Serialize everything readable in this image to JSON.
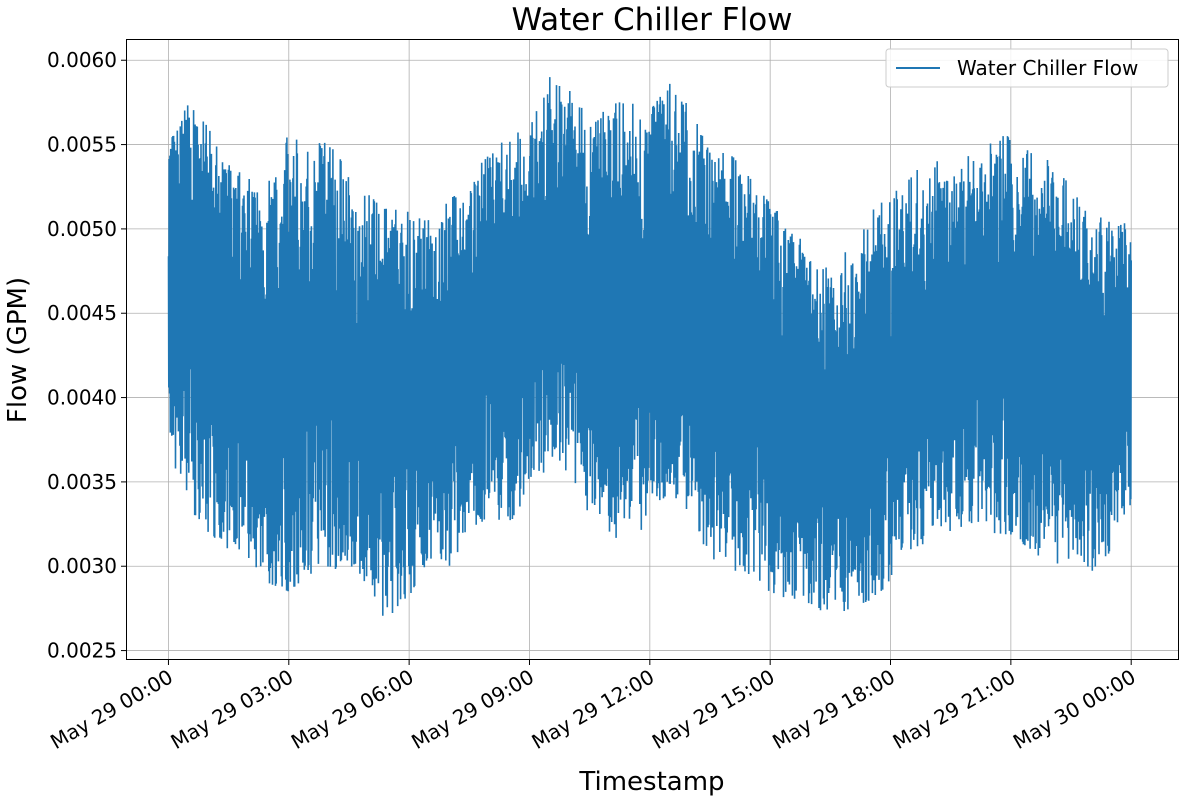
{
  "chart_data": {
    "type": "line",
    "title": "Water Chiller Flow",
    "xlabel": "Timestamp",
    "ylabel": "Flow (GPM)",
    "ylim": [
      0.00245,
      0.00612
    ],
    "xlim": [
      "2024-05-28T22:58",
      "2024-05-30T01:10"
    ],
    "grid": true,
    "legend_position": "top-right",
    "y_ticks": [
      "0.0025",
      "0.0030",
      "0.0035",
      "0.0040",
      "0.0045",
      "0.0050",
      "0.0055",
      "0.0060"
    ],
    "x_ticks": [
      {
        "t": "2024-05-29T00:00",
        "label": "May 29 00:00"
      },
      {
        "t": "2024-05-29T03:00",
        "label": "May 29 03:00"
      },
      {
        "t": "2024-05-29T06:00",
        "label": "May 29 06:00"
      },
      {
        "t": "2024-05-29T09:00",
        "label": "May 29 09:00"
      },
      {
        "t": "2024-05-29T12:00",
        "label": "May 29 12:00"
      },
      {
        "t": "2024-05-29T15:00",
        "label": "May 29 15:00"
      },
      {
        "t": "2024-05-29T18:00",
        "label": "May 29 18:00"
      },
      {
        "t": "2024-05-29T21:00",
        "label": "May 29 21:00"
      },
      {
        "t": "2024-05-30T00:00",
        "label": "May 30 00:00"
      }
    ],
    "series": [
      {
        "name": "Water Chiller Flow",
        "color": "#1f77b4",
        "x": [
          "2024-05-29T00:00",
          "2024-05-29T00:30",
          "2024-05-29T01:00",
          "2024-05-29T01:30",
          "2024-05-29T02:00",
          "2024-05-29T02:30",
          "2024-05-29T03:00",
          "2024-05-29T03:30",
          "2024-05-29T04:00",
          "2024-05-29T04:30",
          "2024-05-29T05:00",
          "2024-05-29T05:30",
          "2024-05-29T06:00",
          "2024-05-29T06:30",
          "2024-05-29T07:00",
          "2024-05-29T07:30",
          "2024-05-29T08:00",
          "2024-05-29T08:30",
          "2024-05-29T09:00",
          "2024-05-29T09:30",
          "2024-05-29T10:00",
          "2024-05-29T10:30",
          "2024-05-29T11:00",
          "2024-05-29T11:30",
          "2024-05-29T12:00",
          "2024-05-29T12:30",
          "2024-05-29T13:00",
          "2024-05-29T13:30",
          "2024-05-29T14:00",
          "2024-05-29T14:30",
          "2024-05-29T15:00",
          "2024-05-29T15:30",
          "2024-05-29T16:00",
          "2024-05-29T16:30",
          "2024-05-29T17:00",
          "2024-05-29T17:30",
          "2024-05-29T18:00",
          "2024-05-29T18:30",
          "2024-05-29T19:00",
          "2024-05-29T19:30",
          "2024-05-29T20:00",
          "2024-05-29T20:30",
          "2024-05-29T21:00",
          "2024-05-29T21:30",
          "2024-05-29T22:00",
          "2024-05-29T22:30",
          "2024-05-29T23:00",
          "2024-05-29T23:30",
          "2024-05-30T00:00"
        ],
        "min": [
          0.00365,
          0.00335,
          0.0032,
          0.0031,
          0.00305,
          0.0029,
          0.00285,
          0.00295,
          0.003,
          0.00295,
          0.0029,
          0.00262,
          0.00282,
          0.00305,
          0.003,
          0.0032,
          0.0033,
          0.00325,
          0.00345,
          0.0036,
          0.00355,
          0.0033,
          0.0032,
          0.0031,
          0.0033,
          0.00345,
          0.0033,
          0.00305,
          0.003,
          0.0029,
          0.00285,
          0.0028,
          0.00278,
          0.0027,
          0.00275,
          0.0028,
          0.0029,
          0.0031,
          0.00315,
          0.0032,
          0.00325,
          0.0032,
          0.00318,
          0.0031,
          0.003,
          0.00305,
          0.0029,
          0.0031,
          0.00335
        ],
        "max": [
          0.00555,
          0.00574,
          0.0056,
          0.00538,
          0.0053,
          0.0053,
          0.00558,
          0.00545,
          0.00556,
          0.0053,
          0.0052,
          0.00512,
          0.0051,
          0.00505,
          0.00518,
          0.0053,
          0.00545,
          0.00555,
          0.0056,
          0.00592,
          0.00582,
          0.00565,
          0.00575,
          0.00575,
          0.0057,
          0.00586,
          0.00572,
          0.00545,
          0.00545,
          0.0053,
          0.00515,
          0.00505,
          0.00485,
          0.00475,
          0.0049,
          0.0051,
          0.0052,
          0.0053,
          0.00545,
          0.0053,
          0.00545,
          0.00555,
          0.00555,
          0.00545,
          0.0054,
          0.00525,
          0.00505,
          0.0051,
          0.005
        ]
      }
    ]
  }
}
